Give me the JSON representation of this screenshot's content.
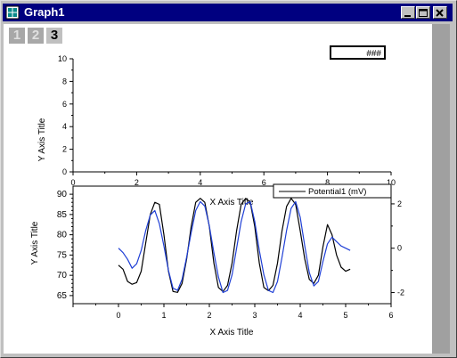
{
  "window": {
    "title": "Graph1"
  },
  "tabs": [
    {
      "label": "1",
      "active": false
    },
    {
      "label": "2",
      "active": false
    },
    {
      "label": "3",
      "active": true
    }
  ],
  "text_box": "###",
  "chart_data": [
    {
      "type": "line",
      "title": "",
      "xlabel": "X Axis Title",
      "ylabel": "Y Axis Title",
      "xlim": [
        0,
        10
      ],
      "ylim": [
        0,
        10
      ],
      "x_ticks": [
        "0",
        "2",
        "4",
        "6",
        "8",
        "10"
      ],
      "y_ticks": [
        "0",
        "2",
        "4",
        "6",
        "8",
        "10"
      ],
      "series": []
    },
    {
      "type": "line",
      "title": "",
      "xlabel": "X Axis Title",
      "ylabel": "Y Axis Title",
      "xlim": [
        -1,
        6
      ],
      "ylim": [
        63,
        92
      ],
      "x_ticks": [
        "0",
        "1",
        "2",
        "3",
        "4",
        "5",
        "6"
      ],
      "y_ticks": [
        "65",
        "70",
        "75",
        "80",
        "85",
        "90"
      ],
      "y2_ticks": [
        "-2",
        "0",
        "2"
      ],
      "y2lim": [
        -2.5,
        2.8
      ],
      "legend": {
        "position": "top-right",
        "entries": [
          "Potential1 (mV)"
        ]
      },
      "series": [
        {
          "color": "#000000",
          "axis": "left",
          "x": [
            0.0,
            0.1,
            0.2,
            0.3,
            0.4,
            0.5,
            0.6,
            0.7,
            0.8,
            0.9,
            1.0,
            1.1,
            1.2,
            1.3,
            1.4,
            1.5,
            1.6,
            1.7,
            1.8,
            1.9,
            2.0,
            2.1,
            2.2,
            2.3,
            2.4,
            2.5,
            2.6,
            2.7,
            2.8,
            2.9,
            3.0,
            3.1,
            3.2,
            3.3,
            3.4,
            3.5,
            3.6,
            3.7,
            3.8,
            3.9,
            4.0,
            4.1,
            4.2,
            4.3,
            4.4,
            4.5,
            4.6,
            4.7,
            4.8,
            4.9,
            5.0,
            5.1
          ],
          "values": [
            72.5,
            71.5,
            68.5,
            67.8,
            68.2,
            71,
            78,
            85,
            88,
            87.5,
            80,
            71,
            66,
            65.8,
            68,
            74,
            82,
            88,
            89,
            88,
            82,
            73,
            67,
            66,
            67.5,
            73,
            81,
            87.5,
            89,
            88,
            82,
            73,
            67,
            66.2,
            67.5,
            73,
            81,
            87,
            89,
            87.5,
            81,
            74,
            69,
            68,
            70,
            77,
            82.5,
            80,
            75,
            72,
            71,
            71.5
          ]
        },
        {
          "color": "#1f3fd6",
          "axis": "right",
          "x": [
            0.0,
            0.1,
            0.2,
            0.3,
            0.4,
            0.5,
            0.6,
            0.7,
            0.8,
            0.9,
            1.0,
            1.1,
            1.2,
            1.3,
            1.4,
            1.5,
            1.6,
            1.7,
            1.8,
            1.9,
            2.0,
            2.1,
            2.2,
            2.3,
            2.4,
            2.5,
            2.6,
            2.7,
            2.8,
            2.9,
            3.0,
            3.1,
            3.2,
            3.3,
            3.4,
            3.5,
            3.6,
            3.7,
            3.8,
            3.9,
            4.0,
            4.1,
            4.2,
            4.3,
            4.4,
            4.5,
            4.6,
            4.7,
            4.8,
            4.9,
            5.0,
            5.1
          ],
          "values": [
            0,
            -0.2,
            -0.5,
            -0.9,
            -0.7,
            -0.1,
            0.8,
            1.5,
            1.7,
            1.1,
            0.1,
            -1.0,
            -1.8,
            -1.9,
            -1.4,
            -0.4,
            0.7,
            1.7,
            2.1,
            1.9,
            1.0,
            -0.2,
            -1.3,
            -2.0,
            -1.9,
            -1.2,
            0.0,
            1.2,
            2.0,
            2.1,
            1.2,
            -0.1,
            -1.2,
            -1.9,
            -2.0,
            -1.5,
            -0.4,
            0.8,
            1.8,
            2.1,
            1.4,
            0.1,
            -1.1,
            -1.7,
            -1.5,
            -0.6,
            0.2,
            0.5,
            0.3,
            0.1,
            0.0,
            -0.1
          ]
        }
      ]
    }
  ]
}
